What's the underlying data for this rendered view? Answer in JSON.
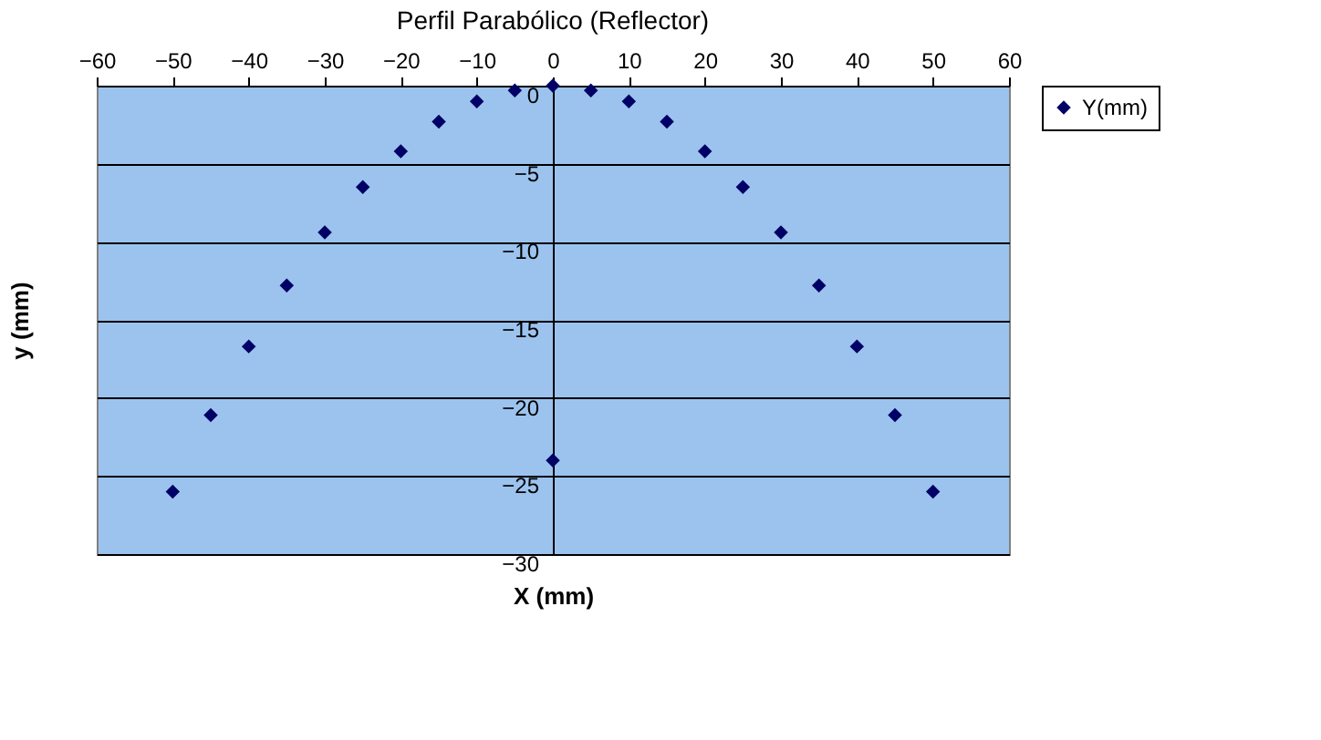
{
  "chart_data": {
    "type": "scatter",
    "title": "Perfil Parabólico (Reflector)",
    "xlabel": "X (mm)",
    "ylabel": "y (mm)",
    "xlim": [
      -60,
      60
    ],
    "xticks": [
      -60,
      -50,
      -40,
      -30,
      -20,
      -10,
      0,
      10,
      20,
      30,
      40,
      50,
      60
    ],
    "ylim": [
      -30,
      0
    ],
    "yticks": [
      -30,
      -25,
      -20,
      -15,
      -10,
      -5,
      0
    ],
    "grid": "y",
    "legend": "right",
    "marker": "diamond",
    "series": [
      {
        "name": "Y(mm)",
        "color": "#000066",
        "x": [
          -50,
          -45,
          -40,
          -35,
          -30,
          -25,
          -20,
          -15,
          -10,
          -5,
          0,
          5,
          10,
          15,
          20,
          25,
          30,
          35,
          40,
          45,
          50,
          0
        ],
        "values": [
          -26,
          -21.1,
          -16.7,
          -12.8,
          -9.4,
          -6.5,
          -4.2,
          -2.3,
          -1.0,
          -0.3,
          0,
          -0.3,
          -1.0,
          -2.3,
          -4.2,
          -6.5,
          -9.4,
          -12.8,
          -16.7,
          -21.1,
          -26,
          -24
        ]
      }
    ]
  }
}
